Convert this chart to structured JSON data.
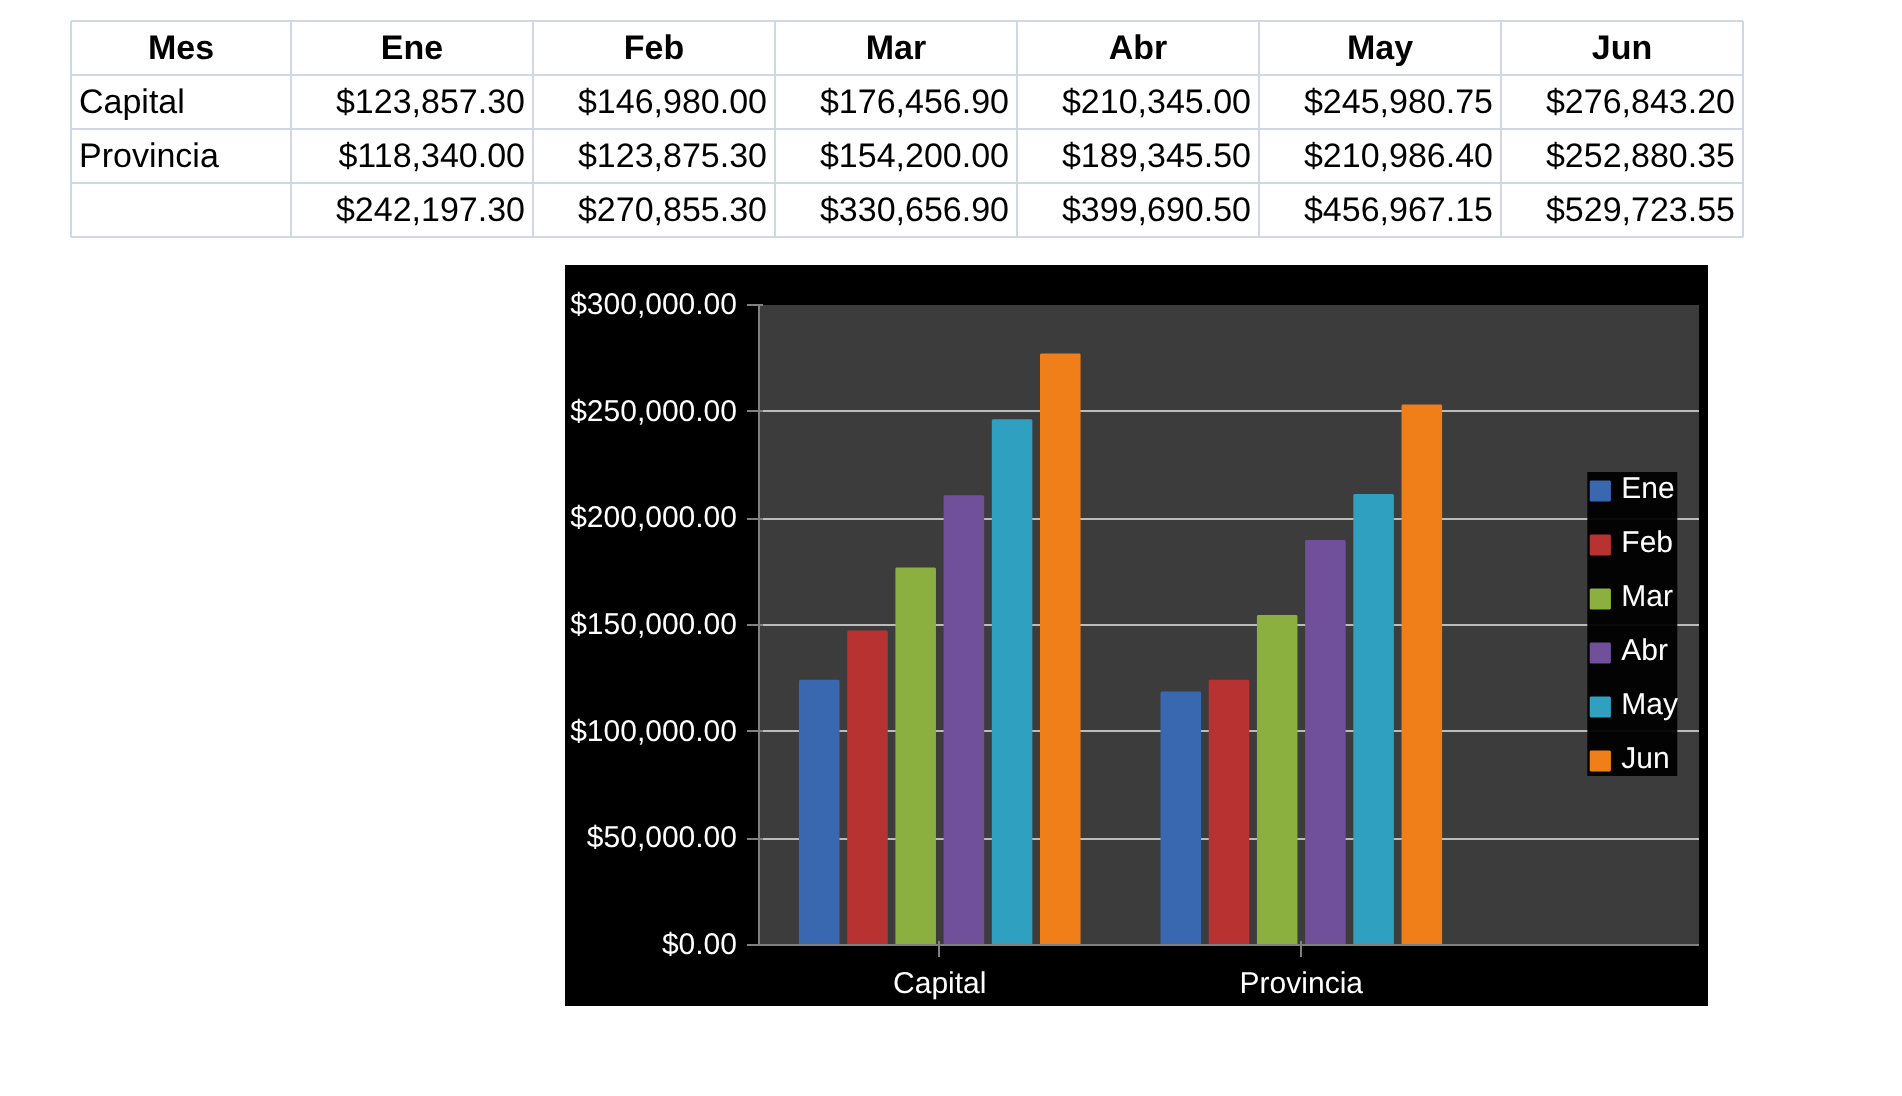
{
  "chart_data": {
    "type": "bar",
    "categories": [
      "Capital",
      "Provincia"
    ],
    "series": [
      {
        "name": "Ene",
        "color": "#3a68b0",
        "values": [
          123857.3,
          118340.0
        ]
      },
      {
        "name": "Feb",
        "color": "#b83232",
        "values": [
          146980.0,
          123875.3
        ]
      },
      {
        "name": "Mar",
        "color": "#8cb040",
        "values": [
          176456.9,
          154200.0
        ]
      },
      {
        "name": "Abr",
        "color": "#70509a",
        "values": [
          210345.0,
          189345.5
        ]
      },
      {
        "name": "May",
        "color": "#30a0c0",
        "values": [
          245980.75,
          210986.4
        ]
      },
      {
        "name": "Jun",
        "color": "#f07f1a",
        "values": [
          276843.2,
          252880.35
        ]
      }
    ],
    "ylim": [
      0,
      300000
    ],
    "yticks": [
      {
        "value": 0,
        "label": "$0.00"
      },
      {
        "value": 50000,
        "label": "$50,000.00"
      },
      {
        "value": 100000,
        "label": "$100,000.00"
      },
      {
        "value": 150000,
        "label": "$150,000.00"
      },
      {
        "value": 200000,
        "label": "$200,000.00"
      },
      {
        "value": 250000,
        "label": "$250,000.00"
      },
      {
        "value": 300000,
        "label": "$300,000.00"
      }
    ],
    "grid": "y",
    "legend": "right",
    "annotations": [
      "Mes",
      "$123,857.30",
      "$146,980.00",
      "$176,456.90",
      "$210,345.00",
      "$245,980.75",
      "$276,843.20",
      "$118,340.00",
      "$123,875.30",
      "$154,200.00",
      "$189,345.50",
      "$210,986.40",
      "$252,880.35",
      "$242,197.30",
      "$270,855.30",
      "$330,656.90",
      "$399,690.50",
      "$456,967.15",
      "$529,723.55"
    ]
  }
}
